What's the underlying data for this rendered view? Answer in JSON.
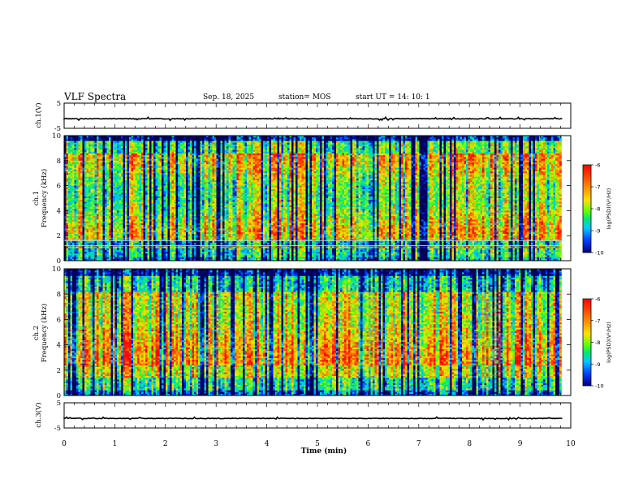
{
  "header": {
    "title": "VLF Spectra",
    "date": "Sep. 18, 2025",
    "station": "station= MOS",
    "start_ut": "start  UT =   14: 10: 1"
  },
  "colorbar": {
    "label": "log(PSD)(V²/Hz)",
    "ticks": [
      "-6",
      "-7",
      "-8",
      "-9",
      "-10"
    ],
    "colors": [
      "#ff0000",
      "#ff6a00",
      "#ffd000",
      "#6bff00",
      "#00e676",
      "#00c8ff",
      "#0050ff",
      "#0000a0"
    ]
  },
  "chart_data": [
    {
      "type": "line",
      "name": "ch.1 waveform",
      "ylabel": "ch.1(V)",
      "ylim": [
        -5,
        5
      ],
      "yticks": [
        "5",
        "-5"
      ],
      "xlim": [
        0,
        10
      ],
      "baseline": -1.2
    },
    {
      "type": "heatmap",
      "name": "ch.1 spectrogram",
      "ylabel": "ch.1 Frequency (kHz)",
      "ylim": [
        0,
        10
      ],
      "yticks": [
        "0",
        "2",
        "4",
        "6",
        "8",
        "10"
      ],
      "xlim": [
        0,
        9.85
      ],
      "zlim": [
        -10,
        -6
      ],
      "description_bands": [
        1.2,
        1.6
      ]
    },
    {
      "type": "heatmap",
      "name": "ch.2 spectrogram",
      "ylabel": "ch.2 Frequency (kHz)",
      "ylim": [
        0,
        10
      ],
      "yticks": [
        "0",
        "2",
        "4",
        "6",
        "8",
        "10"
      ],
      "xlim": [
        0,
        9.85
      ],
      "zlim": [
        -10,
        -6
      ]
    },
    {
      "type": "line",
      "name": "ch.3 waveform",
      "ylabel": "ch.3(V)",
      "ylim": [
        -5,
        5
      ],
      "yticks": [
        "5",
        "-5"
      ],
      "xlim": [
        0,
        10
      ],
      "baseline": -1.2
    }
  ],
  "xaxis": {
    "label": "Time  (min)",
    "ticks": [
      "0",
      "1",
      "2",
      "3",
      "4",
      "5",
      "6",
      "7",
      "8",
      "9",
      "10"
    ]
  },
  "ylabels": {
    "ch1_wave": "ch.1(V)",
    "ch1_spec_a": "ch.1",
    "ch1_spec_b": "Frequency (kHz)",
    "ch2_spec_a": "ch.2",
    "ch2_spec_b": "Frequency (kHz)",
    "ch3_wave": "ch.3(V)"
  }
}
